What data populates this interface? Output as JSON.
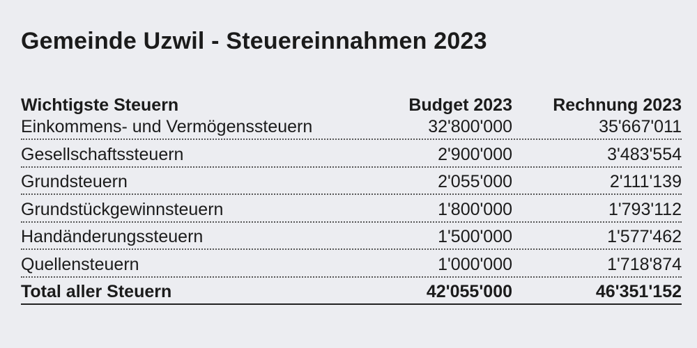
{
  "title": "Gemeinde Uzwil - Steuereinnahmen 2023",
  "table": {
    "headers": [
      "Wichtigste Steuern",
      "Budget 2023",
      "Rechnung 2023"
    ],
    "rows": [
      {
        "name": "Einkommens- und Vermögenssteuern",
        "budget": "32'800'000",
        "rechnung": "35'667'011"
      },
      {
        "name": "Gesellschaftssteuern",
        "budget": "2'900'000",
        "rechnung": "3'483'554"
      },
      {
        "name": "Grundsteuern",
        "budget": "2'055'000",
        "rechnung": "2'111'139"
      },
      {
        "name": "Grundstückgewinnsteuern",
        "budget": "1'800'000",
        "rechnung": "1'793'112"
      },
      {
        "name": "Handänderungssteuern",
        "budget": "1'500'000",
        "rechnung": "1'577'462"
      },
      {
        "name": "Quellensteuern",
        "budget": "1'000'000",
        "rechnung": "1'718'874"
      }
    ],
    "total": {
      "name": "Total aller Steuern",
      "budget": "42'055'000",
      "rechnung": "46'351'152"
    }
  }
}
